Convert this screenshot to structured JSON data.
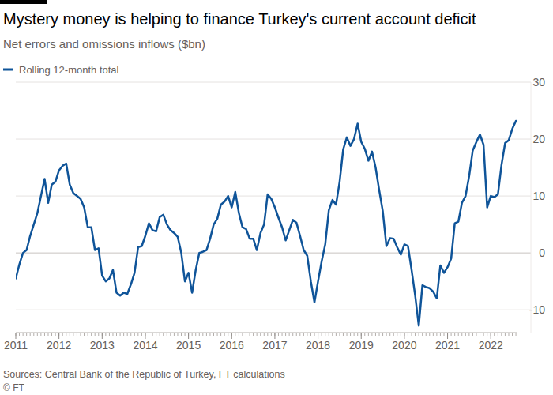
{
  "chart_data": {
    "type": "line",
    "title": "Mystery money is helping to finance Turkey's current account deficit",
    "subtitle": "Net errors and omissions inflows ($bn)",
    "source": "Sources: Central Bank of the Republic of Turkey, FT calculations",
    "credit": "© FT",
    "legend": "top-left",
    "grid": true,
    "xlim": [
      2011,
      2022.6
    ],
    "xticks": [
      2011,
      2012,
      2013,
      2014,
      2015,
      2016,
      2017,
      2018,
      2019,
      2020,
      2021,
      2022
    ],
    "ylim": [
      -14,
      30
    ],
    "yticks": [
      -10,
      0,
      10,
      20,
      30
    ],
    "x": [
      2011.0,
      2011.083,
      2011.167,
      2011.25,
      2011.333,
      2011.417,
      2011.5,
      2011.583,
      2011.667,
      2011.75,
      2011.833,
      2011.917,
      2012.0,
      2012.083,
      2012.167,
      2012.25,
      2012.333,
      2012.417,
      2012.5,
      2012.583,
      2012.667,
      2012.75,
      2012.833,
      2012.917,
      2013.0,
      2013.083,
      2013.167,
      2013.25,
      2013.333,
      2013.417,
      2013.5,
      2013.583,
      2013.667,
      2013.75,
      2013.833,
      2013.917,
      2014.0,
      2014.083,
      2014.167,
      2014.25,
      2014.333,
      2014.417,
      2014.5,
      2014.583,
      2014.667,
      2014.75,
      2014.833,
      2014.917,
      2015.0,
      2015.083,
      2015.167,
      2015.25,
      2015.333,
      2015.417,
      2015.5,
      2015.583,
      2015.667,
      2015.75,
      2015.833,
      2015.917,
      2016.0,
      2016.083,
      2016.167,
      2016.25,
      2016.333,
      2016.417,
      2016.5,
      2016.583,
      2016.667,
      2016.75,
      2016.833,
      2016.917,
      2017.0,
      2017.083,
      2017.167,
      2017.25,
      2017.333,
      2017.417,
      2017.5,
      2017.583,
      2017.667,
      2017.75,
      2017.833,
      2017.917,
      2018.0,
      2018.083,
      2018.167,
      2018.25,
      2018.333,
      2018.417,
      2018.5,
      2018.583,
      2018.667,
      2018.75,
      2018.833,
      2018.917,
      2019.0,
      2019.083,
      2019.167,
      2019.25,
      2019.333,
      2019.417,
      2019.5,
      2019.583,
      2019.667,
      2019.75,
      2019.833,
      2019.917,
      2020.0,
      2020.083,
      2020.167,
      2020.25,
      2020.333,
      2020.417,
      2020.5,
      2020.583,
      2020.667,
      2020.75,
      2020.833,
      2020.917,
      2021.0,
      2021.083,
      2021.167,
      2021.25,
      2021.333,
      2021.417,
      2021.5,
      2021.583,
      2021.667,
      2021.75,
      2021.833,
      2021.917,
      2022.0,
      2022.083,
      2022.167,
      2022.25,
      2022.333,
      2022.417,
      2022.5,
      2022.583
    ],
    "series": [
      {
        "name": "Rolling 12-month total",
        "color": "#0f5499",
        "values": [
          -4.5,
          -2,
          0,
          0.5,
          3,
          5,
          7,
          10,
          13,
          8.8,
          12,
          12.5,
          14.5,
          15.3,
          15.7,
          12,
          10.5,
          10,
          9.5,
          8,
          4.5,
          4.5,
          0.5,
          0.8,
          -4,
          -5,
          -4.5,
          -3,
          -7,
          -7.5,
          -7,
          -7.2,
          -5.5,
          -3.5,
          1,
          1.2,
          3,
          5.2,
          4,
          3.8,
          6.3,
          6.7,
          5,
          4,
          3.5,
          2.8,
          0,
          -5,
          -3.5,
          -7,
          -3,
          0,
          0.2,
          0.5,
          2.5,
          5,
          6,
          8.5,
          9,
          10,
          8,
          10.7,
          7,
          4.5,
          4.2,
          2.5,
          2.5,
          0.5,
          3.5,
          5,
          10.3,
          9.5,
          8,
          6.2,
          4.5,
          2.2,
          4,
          5.8,
          5.3,
          3,
          0.5,
          -0.5,
          -5,
          -8.7,
          -5,
          -1.5,
          1.5,
          7.5,
          9.3,
          8.5,
          12.5,
          18.2,
          20.3,
          18.8,
          20,
          22.7,
          19.5,
          18.3,
          16.2,
          17.8,
          15,
          11,
          7.3,
          1.2,
          2.6,
          2.5,
          1,
          -0.3,
          1.5,
          1.2,
          -3,
          -7.5,
          -12.8,
          -5.7,
          -6,
          -6.2,
          -6.8,
          -8,
          -2.2,
          -3.5,
          -2.5,
          -1,
          5.2,
          5.5,
          8.8,
          10,
          13.5,
          18,
          19.5,
          20.8,
          19,
          8,
          10,
          9.8,
          10.3,
          15.5,
          19.3,
          19.8,
          21.8,
          23.2
        ]
      }
    ]
  }
}
